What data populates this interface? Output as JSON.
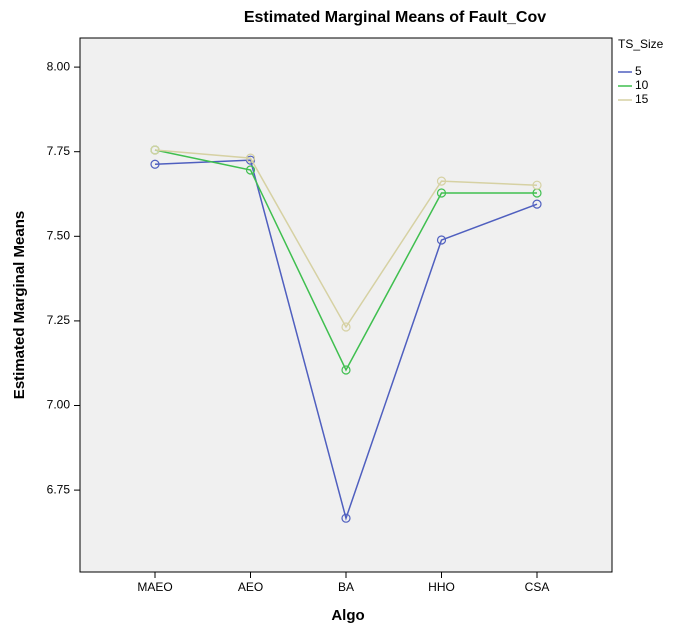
{
  "chart_data": {
    "type": "line",
    "title": "Estimated Marginal Means of Fault_Cov",
    "x_label": "Algo",
    "y_label": "Estimated Marginal Means",
    "legend_title": "TS_Size",
    "legend": "right",
    "grid": false,
    "categories": [
      "MAEO",
      "AEO",
      "BA",
      "HHO",
      "CSA"
    ],
    "series": [
      {
        "name": "5",
        "color": "#4f5fbf",
        "values": [
          7.713,
          7.725,
          6.667,
          7.489,
          7.595
        ]
      },
      {
        "name": "10",
        "color": "#3fbf4f",
        "values": [
          7.755,
          7.696,
          7.105,
          7.628,
          7.628
        ]
      },
      {
        "name": "15",
        "color": "#d6d1a3",
        "values": [
          7.755,
          7.731,
          7.232,
          7.663,
          7.651
        ]
      }
    ],
    "ylim": [
      6.508,
      8.086
    ],
    "yticks": [
      {
        "value": 6.75,
        "label": "6.75"
      },
      {
        "value": 7,
        "label": "7.00"
      },
      {
        "value": 7.25,
        "label": "7.25"
      },
      {
        "value": 7.5,
        "label": "7.50"
      },
      {
        "value": 7.75,
        "label": "7.75"
      },
      {
        "value": 8,
        "label": "8.00"
      }
    ]
  }
}
